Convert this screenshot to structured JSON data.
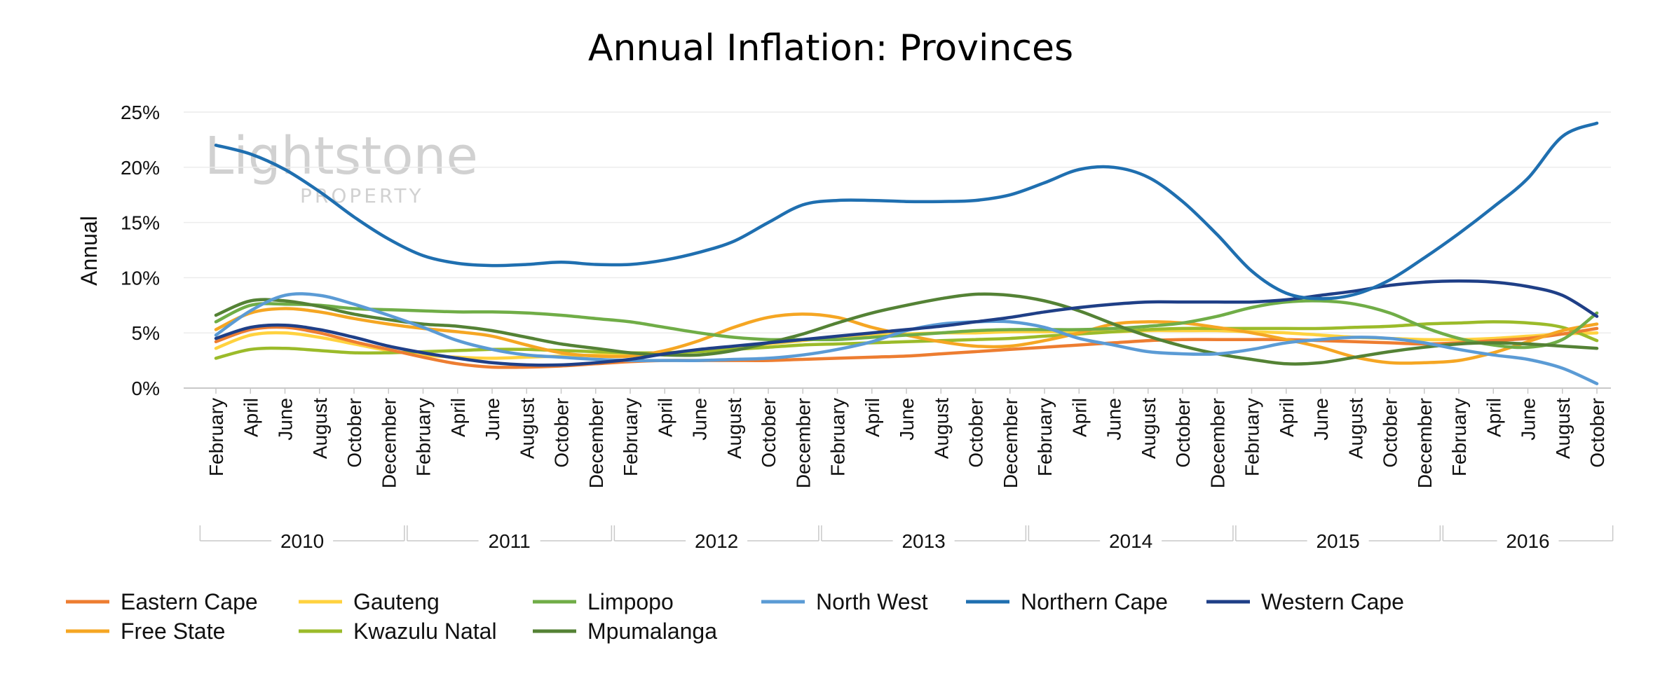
{
  "watermark": {
    "brand": "Lightstone",
    "sub": "PROPERTY"
  },
  "chart_data": {
    "type": "line",
    "title": "Annual Inflation: Provinces",
    "ylabel": "Annual",
    "xlabel": "",
    "ylim": [
      0,
      25
    ],
    "yticks": [
      "0%",
      "5%",
      "10%",
      "15%",
      "20%",
      "25%"
    ],
    "ytick_values": [
      0,
      5,
      10,
      15,
      20,
      25
    ],
    "grid": true,
    "legend_position": "bottom",
    "years": [
      "2010",
      "2011",
      "2012",
      "2013",
      "2014",
      "2015",
      "2016"
    ],
    "x": [
      "February",
      "April",
      "June",
      "August",
      "October",
      "December",
      "February",
      "April",
      "June",
      "August",
      "October",
      "December",
      "February",
      "April",
      "June",
      "August",
      "October",
      "December",
      "February",
      "April",
      "June",
      "August",
      "October",
      "December",
      "February",
      "April",
      "June",
      "August",
      "October",
      "December",
      "February",
      "April",
      "June",
      "August",
      "October",
      "December",
      "February",
      "April",
      "June",
      "August",
      "October"
    ],
    "series": [
      {
        "name": "Eastern Cape",
        "color": "#ED7D31",
        "values": [
          4.2,
          5.3,
          5.5,
          5.0,
          4.2,
          3.5,
          2.8,
          2.2,
          1.9,
          1.9,
          2.0,
          2.2,
          2.4,
          2.5,
          2.5,
          2.5,
          2.5,
          2.6,
          2.7,
          2.8,
          2.9,
          3.1,
          3.3,
          3.5,
          3.7,
          3.9,
          4.1,
          4.3,
          4.4,
          4.4,
          4.4,
          4.4,
          4.3,
          4.2,
          4.1,
          4.0,
          4.1,
          4.3,
          4.5,
          4.9,
          5.4
        ]
      },
      {
        "name": "Free State",
        "color": "#F5A623",
        "values": [
          5.3,
          6.8,
          7.2,
          6.9,
          6.3,
          5.8,
          5.4,
          5.1,
          4.7,
          3.9,
          3.2,
          2.9,
          2.9,
          3.4,
          4.3,
          5.5,
          6.4,
          6.7,
          6.4,
          5.5,
          4.8,
          4.2,
          3.8,
          3.8,
          4.3,
          5.0,
          5.8,
          6.0,
          5.9,
          5.5,
          5.0,
          4.4,
          3.7,
          2.8,
          2.3,
          2.3,
          2.5,
          3.2,
          4.2,
          5.2,
          5.8
        ]
      },
      {
        "name": "Gauteng",
        "color": "#FFD23F",
        "values": [
          3.6,
          4.8,
          5.0,
          4.6,
          4.0,
          3.4,
          3.0,
          2.8,
          2.7,
          2.8,
          2.9,
          3.0,
          3.0,
          3.2,
          3.4,
          3.7,
          4.0,
          4.3,
          4.6,
          4.8,
          4.9,
          5.0,
          5.0,
          5.1,
          5.1,
          5.1,
          5.1,
          5.2,
          5.2,
          5.2,
          5.1,
          5.0,
          4.8,
          4.6,
          4.5,
          4.4,
          4.4,
          4.5,
          4.7,
          4.9,
          5.0
        ]
      },
      {
        "name": "Kwazulu Natal",
        "color": "#9BBB2A",
        "values": [
          2.7,
          3.5,
          3.6,
          3.4,
          3.2,
          3.2,
          3.3,
          3.4,
          3.5,
          3.5,
          3.4,
          3.3,
          3.2,
          3.2,
          3.3,
          3.5,
          3.7,
          3.9,
          4.0,
          4.1,
          4.2,
          4.3,
          4.4,
          4.5,
          4.7,
          4.9,
          5.1,
          5.3,
          5.4,
          5.4,
          5.4,
          5.4,
          5.4,
          5.5,
          5.6,
          5.8,
          5.9,
          6.0,
          5.9,
          5.5,
          4.3
        ]
      },
      {
        "name": "Limpopo",
        "color": "#70AD47",
        "values": [
          6.0,
          7.5,
          7.6,
          7.5,
          7.2,
          7.1,
          7.0,
          6.9,
          6.9,
          6.8,
          6.6,
          6.3,
          6.0,
          5.5,
          5.0,
          4.6,
          4.4,
          4.4,
          4.4,
          4.6,
          4.8,
          5.0,
          5.2,
          5.3,
          5.3,
          5.3,
          5.4,
          5.6,
          5.9,
          6.5,
          7.3,
          7.8,
          7.9,
          7.6,
          6.8,
          5.5,
          4.5,
          3.9,
          3.7,
          4.4,
          6.8
        ]
      },
      {
        "name": "Mpumalanga",
        "color": "#548235",
        "values": [
          6.6,
          7.9,
          7.9,
          7.4,
          6.7,
          6.2,
          5.8,
          5.6,
          5.2,
          4.6,
          4.0,
          3.6,
          3.2,
          3.0,
          3.0,
          3.4,
          4.1,
          4.9,
          5.9,
          6.8,
          7.5,
          8.1,
          8.5,
          8.4,
          7.9,
          7.0,
          5.8,
          4.7,
          3.8,
          3.1,
          2.6,
          2.2,
          2.3,
          2.8,
          3.3,
          3.7,
          4.0,
          4.1,
          4.0,
          3.8,
          3.6
        ]
      },
      {
        "name": "North West",
        "color": "#5B9BD5",
        "values": [
          4.8,
          7.0,
          8.4,
          8.4,
          7.6,
          6.6,
          5.5,
          4.3,
          3.5,
          3.0,
          2.8,
          2.6,
          2.5,
          2.5,
          2.5,
          2.6,
          2.7,
          3.0,
          3.5,
          4.2,
          5.2,
          5.8,
          6.0,
          6.0,
          5.5,
          4.5,
          3.9,
          3.3,
          3.1,
          3.1,
          3.5,
          4.1,
          4.4,
          4.6,
          4.5,
          4.1,
          3.5,
          3.0,
          2.6,
          1.8,
          0.4
        ]
      },
      {
        "name": "Northern Cape",
        "color": "#1F6FB0",
        "values": [
          22.0,
          21.2,
          19.8,
          17.8,
          15.5,
          13.5,
          12.0,
          11.3,
          11.1,
          11.2,
          11.4,
          11.2,
          11.2,
          11.6,
          12.3,
          13.3,
          15.0,
          16.6,
          17.0,
          17.0,
          16.9,
          16.9,
          17.0,
          17.5,
          18.6,
          19.8,
          20.0,
          19.1,
          16.9,
          13.9,
          10.6,
          8.6,
          8.1,
          8.5,
          9.8,
          11.8,
          14.0,
          16.4,
          19.0,
          22.8,
          24.0
        ]
      },
      {
        "name": "Western Cape",
        "color": "#1F3F87",
        "values": [
          4.5,
          5.5,
          5.7,
          5.3,
          4.6,
          3.8,
          3.2,
          2.7,
          2.3,
          2.1,
          2.1,
          2.3,
          2.6,
          3.1,
          3.5,
          3.8,
          4.1,
          4.4,
          4.7,
          5.0,
          5.3,
          5.6,
          6.0,
          6.4,
          6.9,
          7.3,
          7.6,
          7.8,
          7.8,
          7.8,
          7.8,
          8.0,
          8.4,
          8.8,
          9.3,
          9.6,
          9.7,
          9.6,
          9.2,
          8.4,
          6.5
        ]
      }
    ]
  }
}
